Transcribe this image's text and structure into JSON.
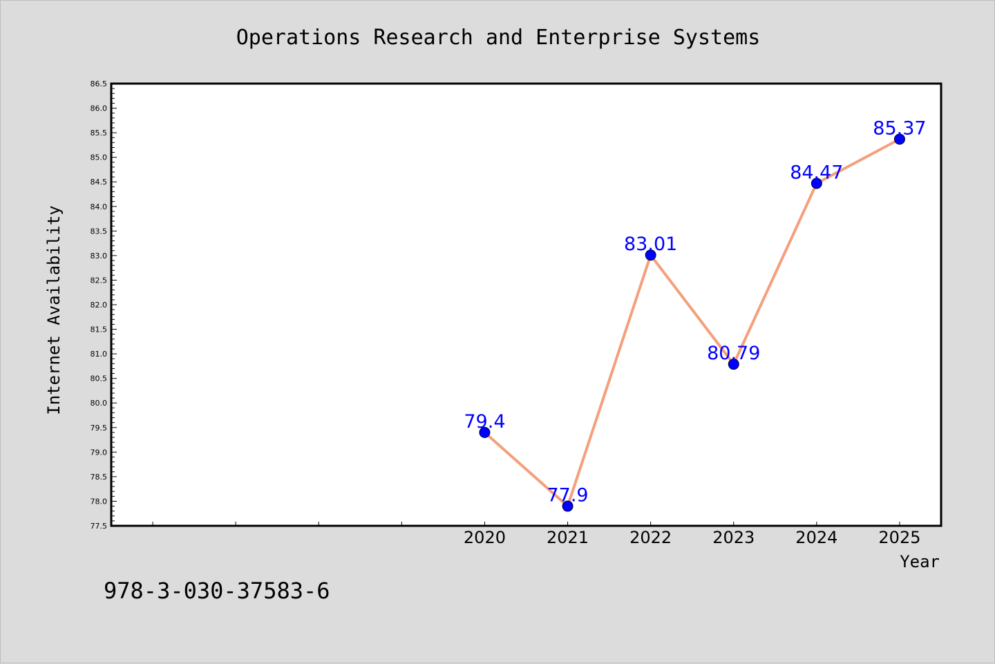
{
  "chart_data": {
    "type": "line",
    "title": "Operations Research and Enterprise Systems",
    "xlabel": "Year",
    "ylabel": "Internet Availability",
    "x": [
      2020,
      2021,
      2022,
      2023,
      2024,
      2025
    ],
    "x_tick_labels": [
      "2020",
      "2021",
      "2022",
      "2023",
      "2024",
      "2025"
    ],
    "xlim": [
      2015.5,
      2025.5
    ],
    "series": [
      {
        "values": [
          79.4,
          77.9,
          83.01,
          80.79,
          84.47,
          85.37
        ],
        "color": "#f4a07c",
        "marker_color": "#0000ff"
      }
    ],
    "data_labels": [
      "79.4",
      "77.9",
      "83.01",
      "80.79",
      "84.47",
      "85.37"
    ],
    "ylim": [
      77.5,
      86.5
    ],
    "y_ticks": [
      "77.5",
      "78.0",
      "78.5",
      "79.0",
      "79.5",
      "80.0",
      "80.5",
      "81.0",
      "81.5",
      "82.0",
      "82.5",
      "83.0",
      "83.5",
      "84.0",
      "84.5",
      "85.0",
      "85.5",
      "86.0",
      "86.5"
    ],
    "grid": false,
    "legend": "none"
  },
  "footer": {
    "isbn": "978-3-030-37583-6"
  },
  "colors": {
    "background": "#dcdcdc",
    "plot_area": "#ffffff",
    "line": "#f4a07c",
    "marker": "#0000ff",
    "data_label": "#0000ff"
  }
}
